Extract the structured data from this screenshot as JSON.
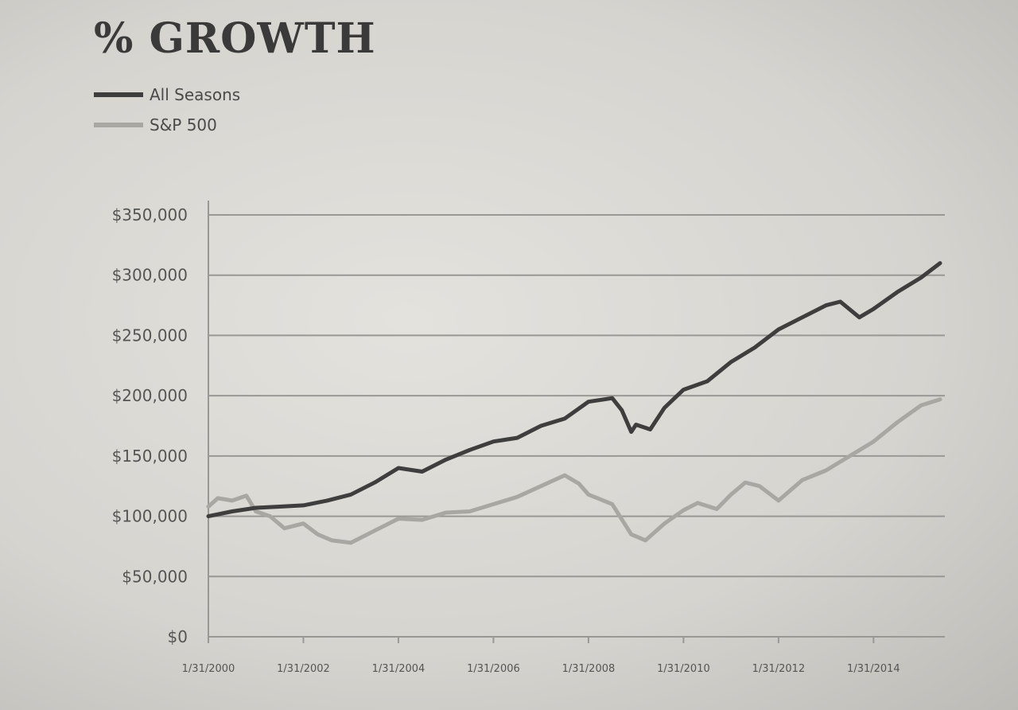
{
  "colors": {
    "all_seasons": "#3e3e3e",
    "sp500": "#a9a7a2",
    "grid": "#9a9894",
    "text": "#555555"
  },
  "chart_data": {
    "type": "line",
    "title": "% GROWTH",
    "legend_position": "top-left",
    "grid": true,
    "y_ticks": [
      "$0",
      "$50,000",
      "$100,000",
      "$150,000",
      "$200,000",
      "$250,000",
      "$300,000",
      "$350,000"
    ],
    "y_tick_values": [
      0,
      50000,
      100000,
      150000,
      200000,
      250000,
      300000,
      350000
    ],
    "ylim": [
      0,
      350000
    ],
    "x_ticks": [
      "1/31/2000",
      "1/31/2002",
      "1/31/2004",
      "1/31/2006",
      "1/31/2008",
      "1/31/2010",
      "1/31/2012",
      "1/31/2014"
    ],
    "x_tick_years": [
      2000,
      2002,
      2004,
      2006,
      2008,
      2010,
      2012,
      2014
    ],
    "xlim": [
      2000,
      2015.5
    ],
    "series": [
      {
        "name": "All Seasons",
        "x": [
          2000.0,
          2000.5,
          2001.0,
          2001.5,
          2002.0,
          2002.5,
          2003.0,
          2003.5,
          2004.0,
          2004.5,
          2005.0,
          2005.5,
          2006.0,
          2006.5,
          2007.0,
          2007.5,
          2008.0,
          2008.5,
          2008.7,
          2008.9,
          2009.0,
          2009.3,
          2009.6,
          2010.0,
          2010.5,
          2011.0,
          2011.5,
          2012.0,
          2012.5,
          2013.0,
          2013.3,
          2013.7,
          2014.0,
          2014.5,
          2015.0,
          2015.4
        ],
        "y": [
          100000,
          104000,
          107000,
          108000,
          109000,
          113000,
          118000,
          128000,
          140000,
          137000,
          147000,
          155000,
          162000,
          165000,
          175000,
          181000,
          195000,
          198000,
          188000,
          170000,
          176000,
          172000,
          190000,
          205000,
          212000,
          228000,
          240000,
          255000,
          265000,
          275000,
          278000,
          265000,
          272000,
          286000,
          298000,
          310000
        ]
      },
      {
        "name": "S&P 500",
        "x": [
          2000.0,
          2000.2,
          2000.5,
          2000.8,
          2001.0,
          2001.3,
          2001.6,
          2002.0,
          2002.3,
          2002.6,
          2003.0,
          2003.5,
          2004.0,
          2004.5,
          2005.0,
          2005.5,
          2006.0,
          2006.5,
          2007.0,
          2007.5,
          2007.8,
          2008.0,
          2008.5,
          2008.9,
          2009.2,
          2009.6,
          2010.0,
          2010.3,
          2010.7,
          2011.0,
          2011.3,
          2011.6,
          2012.0,
          2012.5,
          2013.0,
          2013.5,
          2014.0,
          2014.5,
          2015.0,
          2015.4
        ],
        "y": [
          108000,
          115000,
          113000,
          117000,
          104000,
          100000,
          90000,
          94000,
          85000,
          80000,
          78000,
          88000,
          98000,
          97000,
          103000,
          104000,
          110000,
          116000,
          125000,
          134000,
          127000,
          118000,
          110000,
          85000,
          80000,
          94000,
          105000,
          111000,
          106000,
          118000,
          128000,
          125000,
          113000,
          130000,
          138000,
          150000,
          162000,
          178000,
          192000,
          197000
        ]
      }
    ]
  }
}
